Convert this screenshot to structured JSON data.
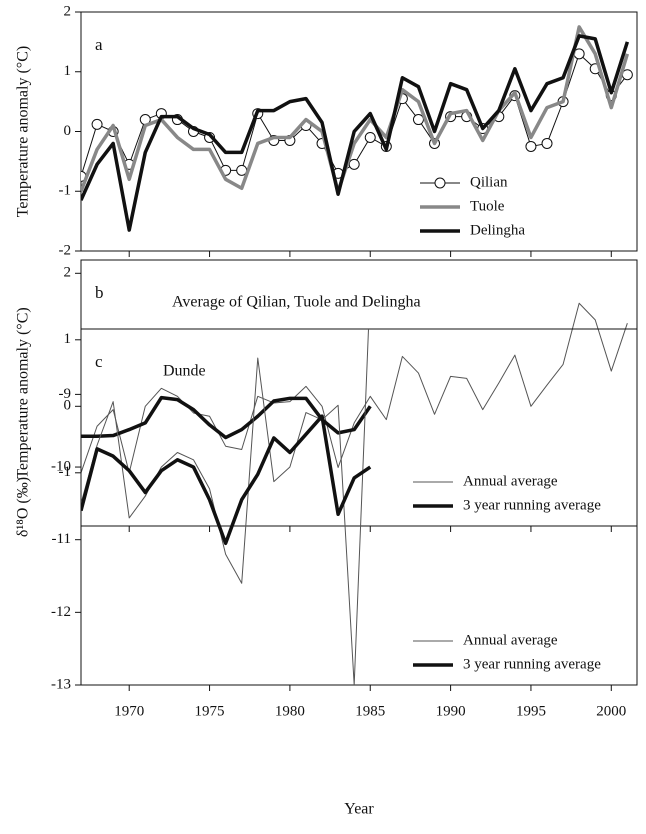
{
  "chart_data": [
    {
      "type": "line",
      "panel_label": "a",
      "ylabel": "Temperature anomaly (°C)",
      "x": [
        1967,
        1968,
        1969,
        1970,
        1971,
        1972,
        1973,
        1974,
        1975,
        1976,
        1977,
        1978,
        1979,
        1980,
        1981,
        1982,
        1983,
        1984,
        1985,
        1986,
        1987,
        1988,
        1989,
        1990,
        1991,
        1992,
        1993,
        1994,
        1995,
        1996,
        1997,
        1998,
        1999,
        2000,
        2001
      ],
      "xlim": [
        1967,
        2001.6
      ],
      "xticks": [
        1970,
        1975,
        1980,
        1985,
        1990,
        1995,
        2000
      ],
      "ylim": [
        -2,
        2
      ],
      "yticks": [
        -2,
        -1,
        0,
        1,
        2
      ],
      "legend": "lower right",
      "series": [
        {
          "name": "Qilian",
          "color": "#111111",
          "linewidth": 1,
          "marker": "circle",
          "values": [
            -0.75,
            0.12,
            0.0,
            -0.55,
            0.2,
            0.3,
            0.2,
            0.0,
            -0.1,
            -0.65,
            -0.65,
            0.3,
            -0.15,
            -0.15,
            0.1,
            -0.2,
            -0.7,
            -0.55,
            -0.1,
            -0.25,
            0.55,
            0.2,
            -0.2,
            0.25,
            0.25,
            0.05,
            0.25,
            0.6,
            -0.25,
            -0.2,
            0.5,
            1.3,
            1.05,
            0.6,
            0.95
          ]
        },
        {
          "name": "Tuole",
          "color": "#888888",
          "linewidth": 3.5,
          "values": [
            -1.0,
            -0.3,
            0.1,
            -0.8,
            0.1,
            0.2,
            -0.1,
            -0.3,
            -0.3,
            -0.8,
            -0.95,
            -0.2,
            -0.1,
            -0.1,
            0.2,
            0.0,
            -1.0,
            -0.2,
            0.2,
            -0.1,
            0.7,
            0.5,
            -0.2,
            0.3,
            0.35,
            -0.15,
            0.35,
            0.65,
            -0.1,
            0.4,
            0.5,
            1.75,
            1.3,
            0.4,
            1.3
          ]
        },
        {
          "name": "Delingha",
          "color": "#111111",
          "linewidth": 3.5,
          "values": [
            -1.15,
            -0.55,
            -0.2,
            -1.65,
            -0.35,
            0.25,
            0.25,
            0.05,
            -0.05,
            -0.35,
            -0.35,
            0.35,
            0.35,
            0.5,
            0.55,
            0.15,
            -1.05,
            0.0,
            0.3,
            -0.3,
            0.9,
            0.75,
            0.0,
            0.8,
            0.7,
            0.05,
            0.35,
            1.05,
            0.35,
            0.8,
            0.9,
            1.6,
            1.55,
            0.65,
            1.5
          ]
        }
      ]
    },
    {
      "type": "line",
      "panel_label": "b",
      "ylabel": "Temperature anomaly (°C)",
      "annotation": "Average of Qilian, Tuole and Delingha",
      "x": [
        1967,
        1968,
        1969,
        1970,
        1971,
        1972,
        1973,
        1974,
        1975,
        1976,
        1977,
        1978,
        1979,
        1980,
        1981,
        1982,
        1983,
        1984,
        1985,
        1986,
        1987,
        1988,
        1989,
        1990,
        1991,
        1992,
        1993,
        1994,
        1995,
        1996,
        1997,
        1998,
        1999,
        2000,
        2001
      ],
      "xlim": [
        1967,
        2001.6
      ],
      "xticks": [
        1970,
        1975,
        1980,
        1985,
        1990,
        1995,
        2000
      ],
      "ylim": [
        -1.8,
        2.2
      ],
      "yticks": [
        -1,
        0,
        1,
        2
      ],
      "legend": "lower right",
      "series": [
        {
          "name": "Annual average",
          "color": "#555555",
          "linewidth": 1,
          "values": [
            -1.0,
            -0.3,
            -0.05,
            -1.0,
            0.0,
            0.27,
            0.15,
            -0.1,
            -0.15,
            -0.6,
            -0.65,
            0.15,
            0.05,
            0.07,
            0.3,
            0.0,
            -0.92,
            -0.25,
            0.15,
            -0.2,
            0.75,
            0.5,
            -0.12,
            0.45,
            0.42,
            -0.05,
            0.35,
            0.77,
            0.0,
            0.32,
            0.63,
            1.55,
            1.3,
            0.53,
            1.25
          ]
        },
        {
          "name": "3 year running average",
          "color": "#111111",
          "linewidth": 3.5,
          "values": [
            -0.45,
            -0.45,
            -0.44,
            -0.35,
            -0.25,
            0.13,
            0.1,
            -0.05,
            -0.28,
            -0.47,
            -0.35,
            -0.15,
            0.08,
            0.12,
            0.12,
            -0.2,
            -0.4,
            -0.35,
            0.0,
            null,
            null,
            null,
            null,
            null,
            null,
            null,
            null,
            null,
            null,
            null,
            null,
            null,
            null,
            null,
            null
          ]
        }
      ]
    },
    {
      "type": "line",
      "panel_label": "c",
      "ylabel": "δ¹⁸O (‰)",
      "xlabel": "Year",
      "annotation": "Dunde",
      "x": [
        1967,
        1968,
        1969,
        1970,
        1971,
        1972,
        1973,
        1974,
        1975,
        1976,
        1977,
        1978,
        1979,
        1980,
        1981,
        1982,
        1983,
        1984,
        1985
      ],
      "xlim": [
        1967,
        2001.6
      ],
      "xticks": [
        1970,
        1975,
        1980,
        1985,
        1990,
        1995,
        2000
      ],
      "ylim": [
        -13,
        -8.1
      ],
      "yticks": [
        -13,
        -12,
        -11,
        -10,
        -9
      ],
      "legend": "lower right",
      "series": [
        {
          "name": "Annual average",
          "color": "#555555",
          "linewidth": 1,
          "values": [
            -10.5,
            -9.7,
            -9.1,
            -10.7,
            -10.4,
            -10.0,
            -9.8,
            -9.9,
            -10.3,
            -11.2,
            -11.6,
            -8.5,
            -10.2,
            -10.0,
            -9.25,
            -9.35,
            -9.15,
            -13.0,
            -7.5
          ]
        },
        {
          "name": "3 year running average",
          "color": "#111111",
          "linewidth": 3.5,
          "values": [
            -10.6,
            -9.75,
            -9.85,
            -10.05,
            -10.35,
            -10.05,
            -9.9,
            -10.0,
            -10.45,
            -11.05,
            -10.45,
            -10.1,
            -9.6,
            -9.8,
            -9.55,
            -9.3,
            -10.65,
            -10.15,
            -10.0
          ]
        }
      ]
    }
  ]
}
